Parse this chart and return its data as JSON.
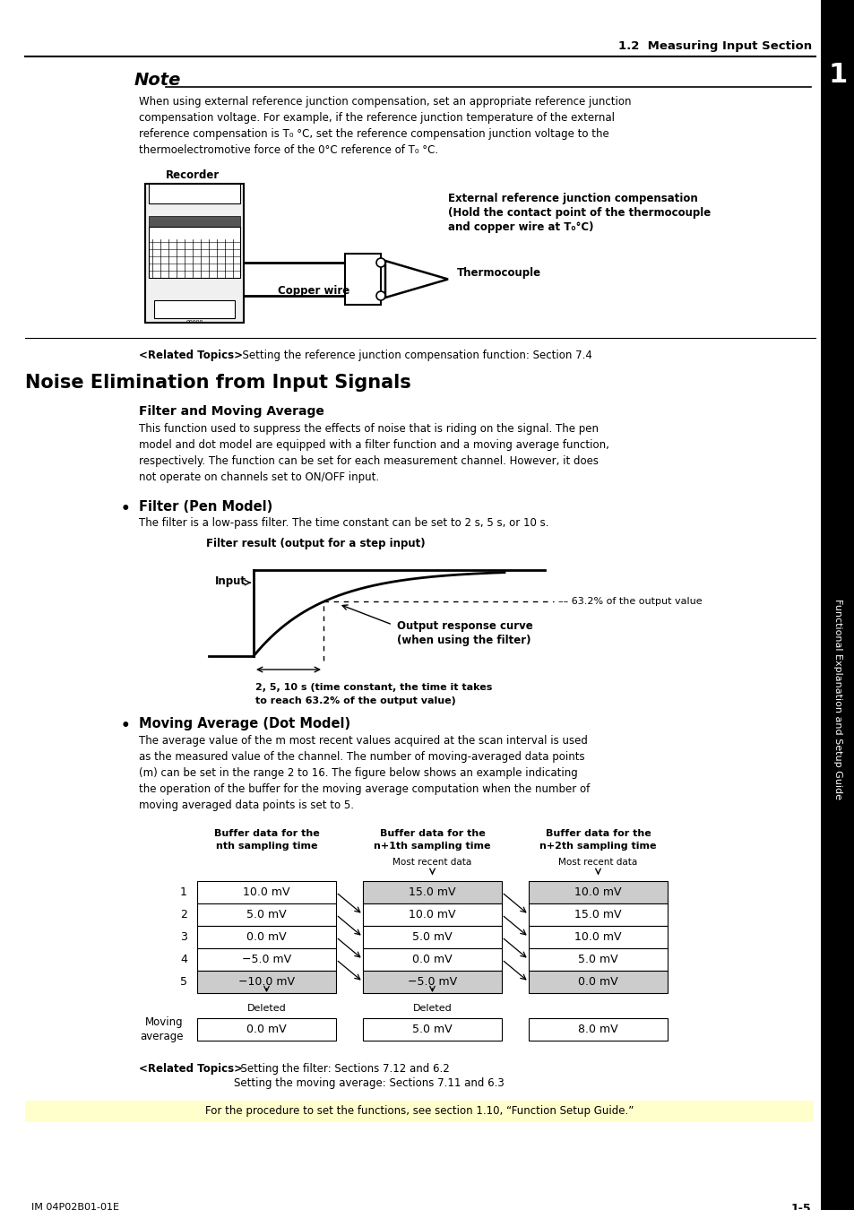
{
  "bg_color": "#ffffff",
  "header_text": "1.2  Measuring Input Section",
  "sidebar_text": "Functional Explanation and Setup Guide",
  "sidebar_number": "1",
  "note_title": "Note",
  "note_body_lines": [
    "When using external reference junction compensation, set an appropriate reference junction",
    "compensation voltage. For example, if the reference junction temperature of the external",
    "reference compensation is T₀ °C, set the reference compensation junction voltage to the",
    "thermoelectromotive force of the 0°C reference of T₀ °C."
  ],
  "recorder_label": "Recorder",
  "ext_ref_label_lines": [
    "External reference junction compensation",
    "(Hold the contact point of the thermocouple",
    "and copper wire at T₀°C)"
  ],
  "copper_wire_label": "Copper wire",
  "thermocouple_label": "Thermocouple",
  "related_topics_1_bold": "<Related Topics>",
  "related_topics_1_normal": "  Setting the reference junction compensation function: Section 7.4",
  "section_title": "Noise Elimination from Input Signals",
  "subsection_title": "Filter and Moving Average",
  "filter_body_lines": [
    "This function used to suppress the effects of noise that is riding on the signal. The pen",
    "model and dot model are equipped with a filter function and a moving average function,",
    "respectively. The function can be set for each measurement channel. However, it does",
    "not operate on channels set to ON/OFF input."
  ],
  "filter_pen_title": "Filter (Pen Model)",
  "filter_pen_body": "The filter is a low-pass filter. The time constant can be set to 2 s, 5 s, or 10 s.",
  "filter_result_label": "Filter result (output for a step input)",
  "input_label": "Input",
  "pct_label": "63.2% of the output value",
  "output_response_line1": "Output response curve",
  "output_response_line2": "(when using the filter)",
  "time_const_line1": "2, 5, 10 s (time constant, the time it takes",
  "time_const_line2": "to reach 63.2% of the output value)",
  "moving_avg_title": "Moving Average (Dot Model)",
  "moving_avg_body_lines": [
    "The average value of the m most recent values acquired at the scan interval is used",
    "as the measured value of the channel. The number of moving-averaged data points",
    "(m) can be set in the range 2 to 16. The figure below shows an example indicating",
    "the operation of the buffer for the moving average computation when the number of",
    "moving averaged data points is set to 5."
  ],
  "table_header_line1": [
    "Buffer data for the",
    "Buffer data for the",
    "Buffer data for the"
  ],
  "table_header_line2": [
    "nth sampling time",
    "n+1th sampling time",
    "n+2th sampling time"
  ],
  "table_most_recent": [
    "",
    "Most recent data",
    "Most recent data"
  ],
  "table_rows": [
    [
      "1",
      "10.0 mV",
      "15.0 mV",
      "10.0 mV"
    ],
    [
      "2",
      "5.0 mV",
      "10.0 mV",
      "15.0 mV"
    ],
    [
      "3",
      "0.0 mV",
      "5.0 mV",
      "10.0 mV"
    ],
    [
      "4",
      "−5.0 mV",
      "0.0 mV",
      "5.0 mV"
    ],
    [
      "5",
      "−10.0 mV",
      "−5.0 mV",
      "0.0 mV"
    ]
  ],
  "row5_shaded": [
    true,
    true,
    true
  ],
  "row1_col2_shaded": true,
  "row1_col3_shaded": true,
  "moving_avg_values": [
    "0.0 mV",
    "5.0 mV",
    "8.0 mV"
  ],
  "deleted_labels": [
    "Deleted",
    "Deleted"
  ],
  "moving_avg_label_line1": "Moving",
  "moving_avg_label_line2": "average",
  "related_topics_2_bold": "<Related Topics>",
  "related_topics_2_line1": "  Setting the filter: Sections 7.12 and 6.2",
  "related_topics_2_line2": "Setting the moving average: Sections 7.11 and 6.3",
  "footer_note": "For the procedure to set the functions, see section 1.10, “Function Setup Guide.”",
  "footer_left": "IM 04P02B01-01E",
  "footer_right": "1-5",
  "shade_color": "#cccccc"
}
